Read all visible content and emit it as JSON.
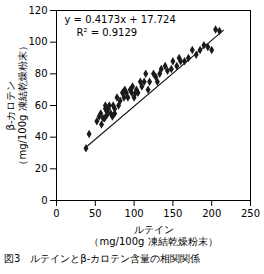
{
  "chart_data": {
    "type": "scatter",
    "caption": "図3　ルテインとβ-カロテン含量の相関関係",
    "x_label": "ルテイン\n（mg/100g 凍結乾燥粉末）",
    "y_label": "β-カロテン\n（mg/100g 凍結乾燥粉末）",
    "annotations": [
      "y = 0.4173x + 17.724",
      "R² = 0.9129"
    ],
    "series": [
      {
        "type": "scatter",
        "marker": "diamond",
        "color": "#1a1a1a",
        "x": [
          38,
          42,
          52,
          55,
          57,
          58,
          60,
          62,
          63,
          63,
          65,
          65,
          67,
          68,
          70,
          72,
          73,
          75,
          75,
          78,
          80,
          82,
          85,
          87,
          88,
          90,
          92,
          95,
          97,
          98,
          100,
          102,
          103,
          105,
          108,
          110,
          113,
          115,
          118,
          120,
          125,
          128,
          130,
          133,
          135,
          140,
          143,
          148,
          150,
          155,
          158,
          160,
          165,
          170,
          175,
          180,
          185,
          190,
          195,
          200,
          205,
          210
        ],
        "values": [
          33,
          42,
          50,
          53,
          55,
          48,
          52,
          52,
          58,
          60,
          54,
          56,
          58,
          60,
          55,
          53,
          60,
          55,
          58,
          65,
          60,
          63,
          68,
          65,
          70,
          68,
          65,
          70,
          68,
          72,
          65,
          68,
          70,
          68,
          75,
          72,
          75,
          80,
          70,
          75,
          80,
          78,
          75,
          80,
          83,
          85,
          82,
          83,
          88,
          85,
          90,
          88,
          88,
          90,
          95,
          92,
          95,
          98,
          97,
          95,
          108,
          107
        ]
      },
      {
        "type": "line",
        "line_style": "solid",
        "color": "#1a1a1a",
        "x": [
          38,
          215
        ],
        "values": [
          33.5814,
          107.4435
        ]
      }
    ],
    "xlim": [
      0,
      250
    ],
    "xticks": [
      0,
      50,
      100,
      150,
      200,
      250
    ],
    "ylim": [
      0,
      120
    ],
    "yticks": [
      0,
      20,
      40,
      60,
      80,
      100,
      120
    ],
    "grid": false
  }
}
